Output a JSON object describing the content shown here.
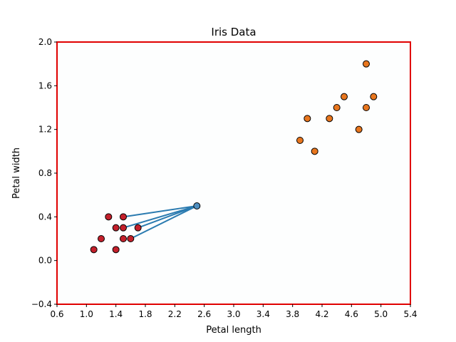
{
  "chart_data": {
    "type": "scatter",
    "title": "Iris Data",
    "xlabel": "Petal length",
    "ylabel": "Petal width",
    "xlim": [
      0.6,
      5.4
    ],
    "ylim": [
      -0.4,
      2.0
    ],
    "xticks": [
      0.6,
      1.0,
      1.4,
      1.8,
      2.2,
      2.6,
      3.0,
      3.4,
      3.8,
      4.2,
      4.6,
      5.0,
      5.4
    ],
    "yticks": [
      -0.4,
      0.0,
      0.4,
      0.8,
      1.2,
      1.6,
      2.0
    ],
    "xtick_labels": [
      "0.6",
      "1.0",
      "1.4",
      "1.8",
      "2.2",
      "2.6",
      "3.0",
      "3.4",
      "3.8",
      "4.2",
      "4.6",
      "5.0",
      "5.4"
    ],
    "ytick_labels": [
      "−0.4",
      "0.0",
      "0.4",
      "0.8",
      "1.2",
      "1.6",
      "2.0"
    ],
    "grid": false,
    "frame_color": "#e00000",
    "series": [
      {
        "color": "#c3202b",
        "points": [
          [
            1.1,
            0.1
          ],
          [
            1.2,
            0.2
          ],
          [
            1.3,
            0.4
          ],
          [
            1.4,
            0.3
          ],
          [
            1.4,
            0.1
          ],
          [
            1.5,
            0.4
          ],
          [
            1.5,
            0.3
          ],
          [
            1.5,
            0.2
          ],
          [
            1.6,
            0.2
          ],
          [
            1.7,
            0.3
          ]
        ]
      },
      {
        "color": "#e8761e",
        "points": [
          [
            3.9,
            1.1
          ],
          [
            4.0,
            1.3
          ],
          [
            4.1,
            1.0
          ],
          [
            4.3,
            1.3
          ],
          [
            4.4,
            1.4
          ],
          [
            4.5,
            1.5
          ],
          [
            4.7,
            1.2
          ],
          [
            4.8,
            1.8
          ],
          [
            4.8,
            1.4
          ],
          [
            4.9,
            1.5
          ]
        ]
      },
      {
        "color": "#4f8fc0",
        "points": [
          [
            2.5,
            0.5
          ]
        ]
      }
    ],
    "neighbor_lines": {
      "color": "#2b7bb0",
      "from": [
        2.5,
        0.5
      ],
      "to": [
        [
          1.5,
          0.4
        ],
        [
          1.5,
          0.3
        ],
        [
          1.7,
          0.3
        ],
        [
          1.6,
          0.2
        ]
      ]
    }
  }
}
